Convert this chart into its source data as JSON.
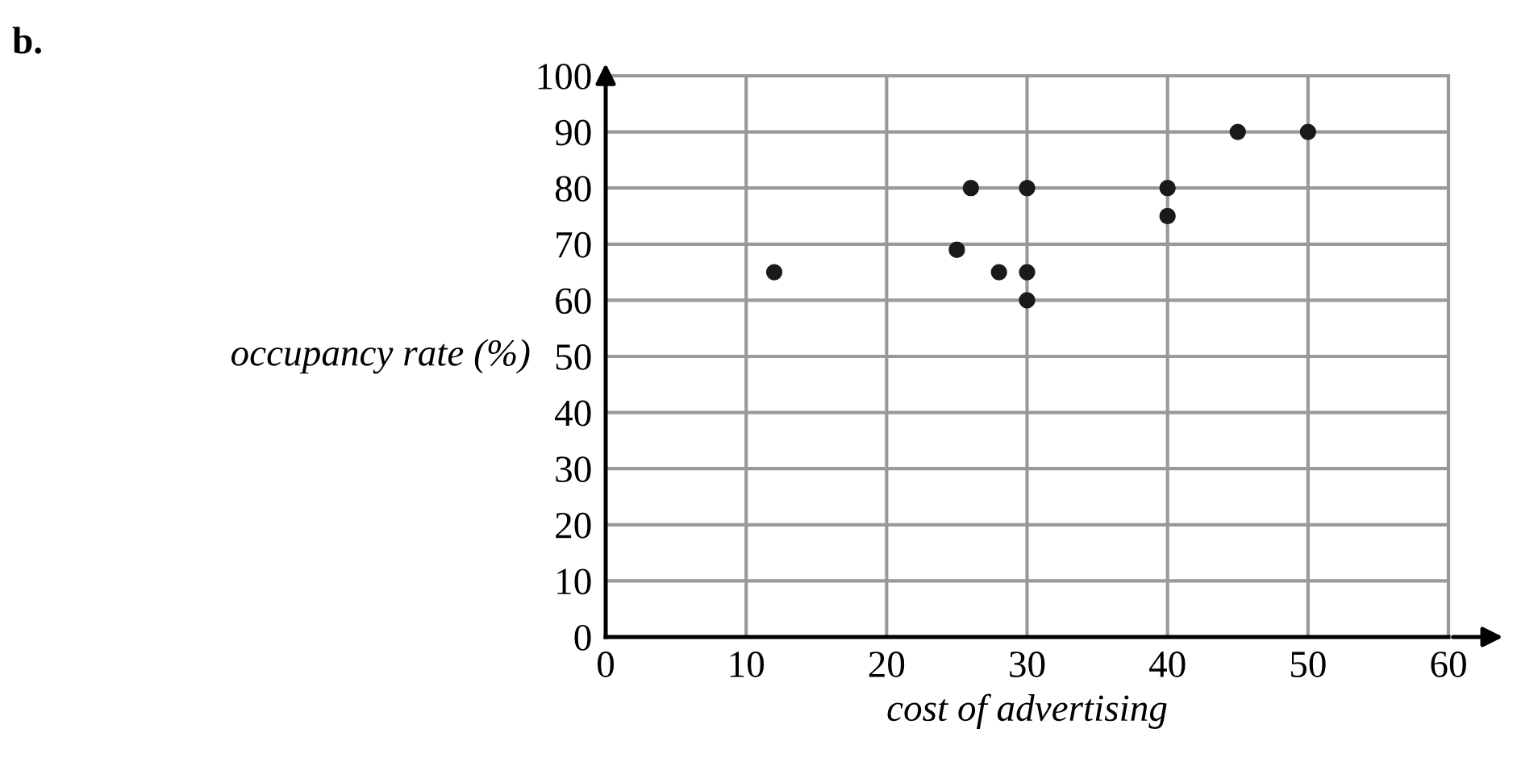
{
  "chart_data": {
    "type": "scatter",
    "xlabel": "cost of advertising",
    "ylabel": "occupancy rate (%)",
    "annotations": [
      "b."
    ],
    "x": [
      12,
      25,
      26,
      28,
      30,
      30,
      30,
      40,
      40,
      45,
      50
    ],
    "values": [
      65,
      69,
      80,
      65,
      80,
      65,
      60,
      80,
      75,
      90,
      90
    ],
    "color": "#1a1a1a",
    "marker": "circle",
    "xlim": [
      0,
      60
    ],
    "ylim": [
      0,
      100
    ],
    "xticks": [
      0,
      10,
      20,
      30,
      40,
      50,
      60
    ],
    "yticks": [
      0,
      10,
      20,
      30,
      40,
      50,
      60,
      70,
      80,
      90,
      100
    ],
    "grid": true
  }
}
